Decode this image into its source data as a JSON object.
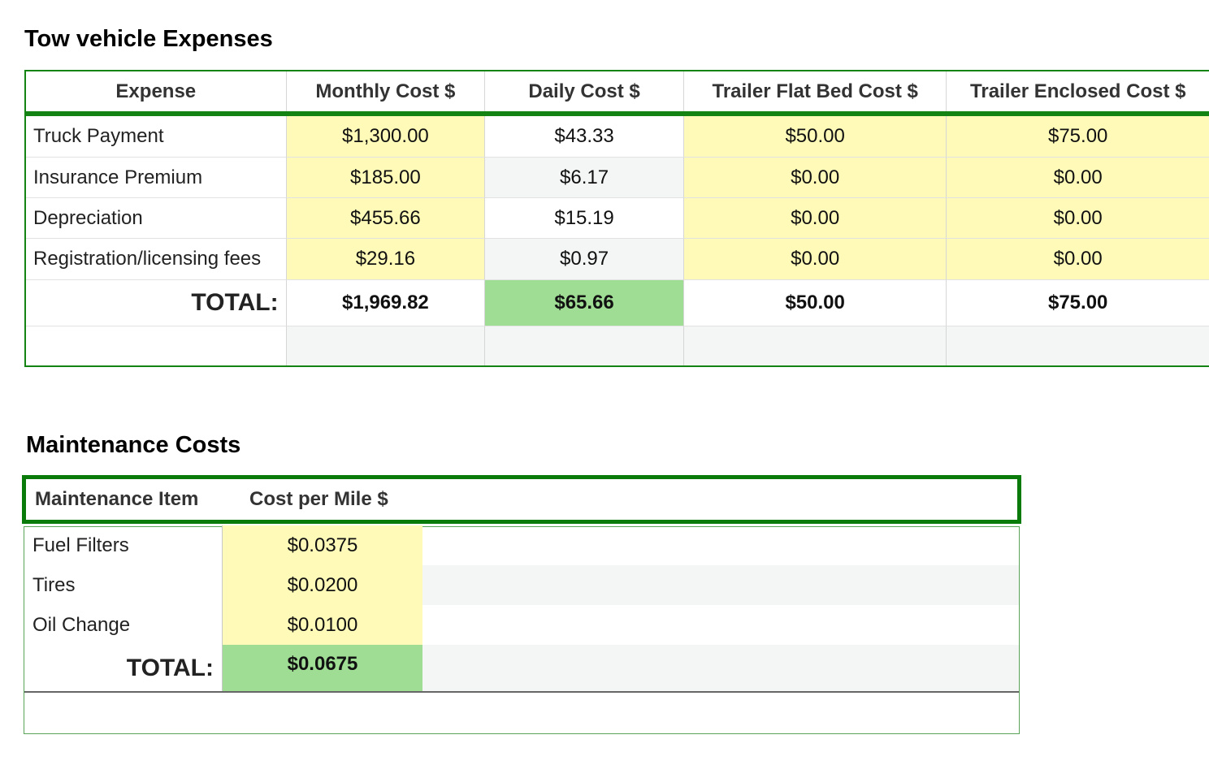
{
  "tow": {
    "title": "Tow vehicle Expenses",
    "headers": [
      "Expense",
      "Monthly Cost $",
      "Daily Cost $",
      "Trailer Flat Bed Cost $",
      "Trailer Enclosed Cost $"
    ],
    "rows": [
      [
        "Truck Payment",
        "$1,300.00",
        "$43.33",
        "$50.00",
        "$75.00"
      ],
      [
        "Insurance Premium",
        "$185.00",
        "$6.17",
        "$0.00",
        "$0.00"
      ],
      [
        "Depreciation",
        "$455.66",
        "$15.19",
        "$0.00",
        "$0.00"
      ],
      [
        "Registration/licensing fees",
        "$29.16",
        "$0.97",
        "$0.00",
        "$0.00"
      ]
    ],
    "total": [
      "TOTAL:",
      "$1,969.82",
      "$65.66",
      "$50.00",
      "$75.00"
    ]
  },
  "maintenance": {
    "title": "Maintenance Costs",
    "headers": [
      "Maintenance Item",
      "Cost per Mile $"
    ],
    "rows": [
      [
        "Fuel Filters",
        "$0.0375"
      ],
      [
        "Tires",
        "$0.0200"
      ],
      [
        "Oil Change",
        "$0.0100"
      ]
    ],
    "total": [
      "TOTAL:",
      "$0.0675"
    ]
  },
  "colors": {
    "accent_green": "#138413",
    "input_yellow": "#fffab8",
    "total_green": "#9fdc94",
    "alt_row_gray": "#f3f6f5"
  }
}
